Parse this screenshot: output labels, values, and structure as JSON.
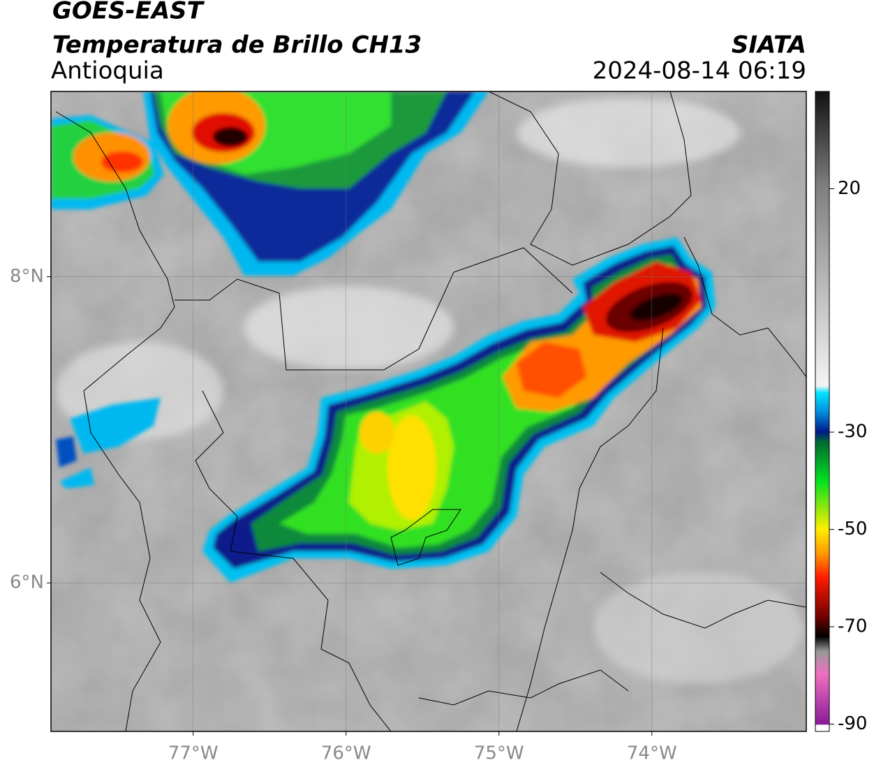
{
  "header": {
    "title": "GOES-EAST",
    "subtitle": "Temperatura de Brillo CH13",
    "region": "Antioquia",
    "source": "SIATA",
    "datetime": "2024-08-14 06:19"
  },
  "map": {
    "xlim": [
      -77.93,
      -72.99
    ],
    "ylim": [
      5.03,
      9.21
    ],
    "xticks": [
      {
        "value": -77,
        "label": "77°W"
      },
      {
        "value": -76,
        "label": "76°W"
      },
      {
        "value": -75,
        "label": "75°W"
      },
      {
        "value": -74,
        "label": "74°W"
      }
    ],
    "yticks": [
      {
        "value": 8,
        "label": "8°N"
      },
      {
        "value": 6,
        "label": "6°N"
      }
    ],
    "grid": true
  },
  "colorbar": {
    "lim": [
      -91.5,
      40
    ],
    "ticks": [
      20,
      -30,
      -50,
      -70,
      -90
    ]
  }
}
